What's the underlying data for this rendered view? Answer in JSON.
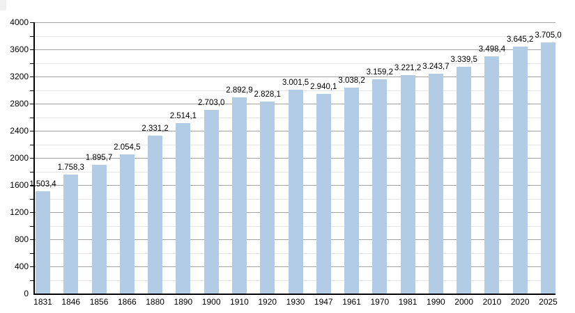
{
  "chart_data": {
    "type": "bar",
    "title": "",
    "xlabel": "",
    "ylabel": "",
    "categories": [
      "1831",
      "1846",
      "1856",
      "1866",
      "1880",
      "1890",
      "1900",
      "1910",
      "1920",
      "1930",
      "1947",
      "1961",
      "1970",
      "1981",
      "1990",
      "2000",
      "2010",
      "2020",
      "2025"
    ],
    "values": [
      1503.4,
      1758.3,
      1895.7,
      2054.5,
      2331.2,
      2514.1,
      2703.0,
      2892.9,
      2828.1,
      3001.5,
      2940.1,
      3038.2,
      3159.2,
      3221.2,
      3243.7,
      3339.5,
      3498.4,
      3645.2,
      3705.0
    ],
    "value_labels": [
      "1.503,4",
      "1.758,3",
      "1.895,7",
      "2.054,5",
      "2.331,2",
      "2.514,1",
      "2.703,0",
      "2.892,9",
      "2.828,1",
      "3.001,5",
      "2.940,1",
      "3.038,2",
      "3.159,2",
      "3.221,2",
      "3.243,7",
      "3.339,5",
      "3.498,4",
      "3.645,2",
      "3.705,0"
    ],
    "ylim": [
      0,
      4000
    ],
    "y_major_ticks": [
      0,
      400,
      800,
      1200,
      1600,
      2000,
      2400,
      2800,
      3200,
      3600,
      4000
    ],
    "y_major_tick_labels": [
      "0",
      "400",
      "800",
      "1200",
      "1600",
      "2000",
      "2400",
      "2800",
      "3200",
      "3600",
      "4000"
    ],
    "y_minor_step": 200,
    "grid": true,
    "legend_position": "none",
    "bar_color": "#b3ccE5",
    "major_grid_color": "#a3a3a3",
    "minor_grid_color": "#e5e5e5",
    "axis_color": "#000000",
    "text_color": "#000000"
  }
}
